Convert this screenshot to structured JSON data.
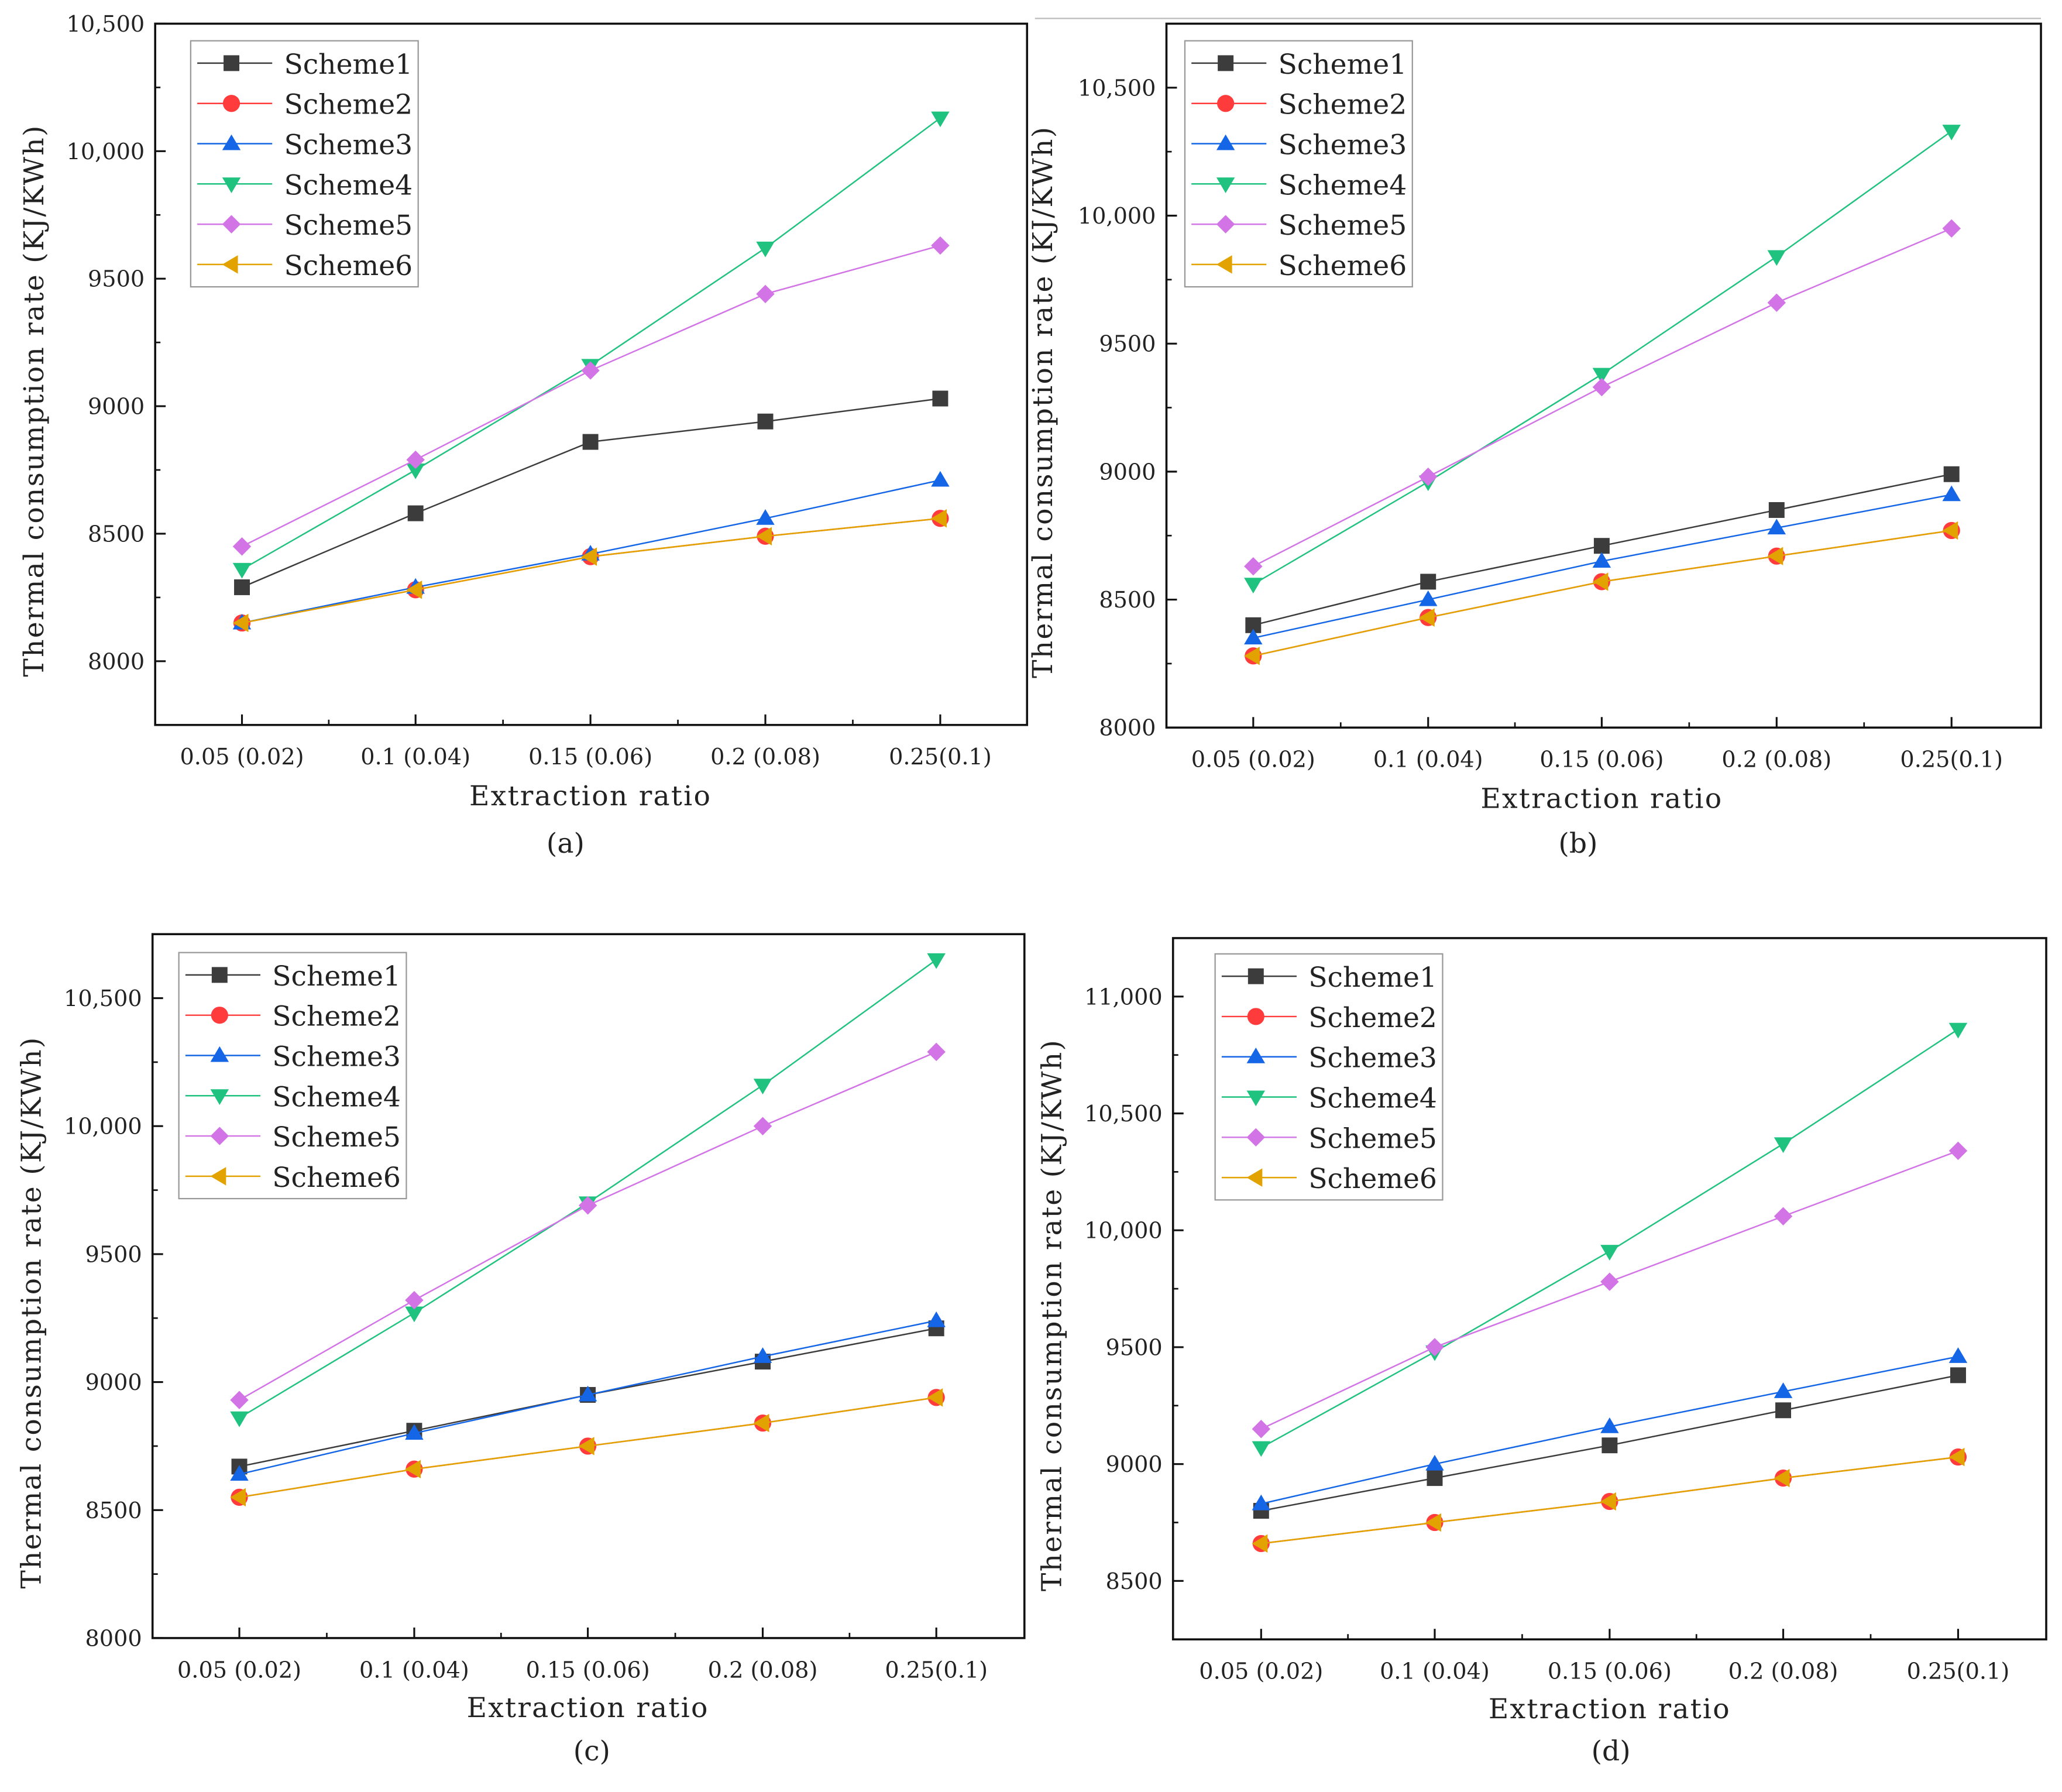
{
  "styles": {
    "Scheme1": {
      "color": "#3c3c3c",
      "marker": "square"
    },
    "Scheme2": {
      "color": "#ff3b3b",
      "marker": "circle"
    },
    "Scheme3": {
      "color": "#1466e6",
      "marker": "triangle-up"
    },
    "Scheme4": {
      "color": "#1fc27e",
      "marker": "triangle-down"
    },
    "Scheme5": {
      "color": "#d274e6",
      "marker": "diamond"
    },
    "Scheme6": {
      "color": "#e2a200",
      "marker": "triangle-left"
    }
  },
  "chart_data": [
    {
      "type": "line",
      "panel_label": "(a)",
      "xlabel": "Extraction ratio",
      "ylabel": "Thermal consumption rate (KJ/KWh)",
      "categories": [
        "0.05 (0.02)",
        "0.1 (0.04)",
        "0.15 (0.06)",
        "0.2 (0.08)",
        "0.25(0.1)"
      ],
      "ylim": [
        7750,
        10500
      ],
      "yticks": [
        8000,
        8500,
        9000,
        9500,
        10000,
        10500
      ],
      "ytick_labels": [
        "8000",
        "8500",
        "9000",
        "9500",
        "10,000",
        "10,500"
      ],
      "legend_position": "top-left",
      "series": [
        {
          "name": "Scheme1",
          "values": [
            8290,
            8580,
            8860,
            8940,
            9030
          ]
        },
        {
          "name": "Scheme2",
          "values": [
            8150,
            8280,
            8410,
            8490,
            8560
          ]
        },
        {
          "name": "Scheme3",
          "values": [
            8150,
            8290,
            8420,
            8560,
            8710
          ]
        },
        {
          "name": "Scheme4",
          "values": [
            8360,
            8750,
            9160,
            9620,
            10130
          ]
        },
        {
          "name": "Scheme5",
          "values": [
            8450,
            8790,
            9140,
            9440,
            9630
          ]
        },
        {
          "name": "Scheme6",
          "values": [
            8150,
            8280,
            8410,
            8490,
            8560
          ]
        }
      ]
    },
    {
      "type": "line",
      "panel_label": "(b)",
      "xlabel": "Extraction ratio",
      "ylabel": "Thermal consumption rate (KJ/KWh)",
      "categories": [
        "0.05 (0.02)",
        "0.1 (0.04)",
        "0.15 (0.06)",
        "0.2 (0.08)",
        "0.25(0.1)"
      ],
      "ylim": [
        8000,
        10750
      ],
      "yticks": [
        8000,
        8500,
        9000,
        9500,
        10000,
        10500
      ],
      "ytick_labels": [
        "8000",
        "8500",
        "9000",
        "9500",
        "10,000",
        "10,500"
      ],
      "legend_position": "top-left",
      "series": [
        {
          "name": "Scheme1",
          "values": [
            8400,
            8570,
            8710,
            8850,
            8990
          ]
        },
        {
          "name": "Scheme2",
          "values": [
            8280,
            8430,
            8570,
            8670,
            8770
          ]
        },
        {
          "name": "Scheme3",
          "values": [
            8350,
            8500,
            8650,
            8780,
            8910
          ]
        },
        {
          "name": "Scheme4",
          "values": [
            8560,
            8960,
            9380,
            9840,
            10330
          ]
        },
        {
          "name": "Scheme5",
          "values": [
            8630,
            8980,
            9330,
            9660,
            9950
          ]
        },
        {
          "name": "Scheme6",
          "values": [
            8280,
            8430,
            8570,
            8670,
            8770
          ]
        }
      ]
    },
    {
      "type": "line",
      "panel_label": "(c)",
      "xlabel": "Extraction ratio",
      "ylabel": "Thermal consumption rate (KJ/KWh)",
      "categories": [
        "0.05 (0.02)",
        "0.1 (0.04)",
        "0.15 (0.06)",
        "0.2 (0.08)",
        "0.25(0.1)"
      ],
      "ylim": [
        8000,
        10750
      ],
      "yticks": [
        8000,
        8500,
        9000,
        9500,
        10000,
        10500
      ],
      "ytick_labels": [
        "8000",
        "8500",
        "9000",
        "9500",
        "10,000",
        "10,500"
      ],
      "legend_position": "top-left",
      "series": [
        {
          "name": "Scheme1",
          "values": [
            8670,
            8810,
            8950,
            9080,
            9210
          ]
        },
        {
          "name": "Scheme2",
          "values": [
            8550,
            8660,
            8750,
            8840,
            8940
          ]
        },
        {
          "name": "Scheme3",
          "values": [
            8640,
            8800,
            8950,
            9100,
            9240
          ]
        },
        {
          "name": "Scheme4",
          "values": [
            8860,
            9270,
            9700,
            10160,
            10650
          ]
        },
        {
          "name": "Scheme5",
          "values": [
            8930,
            9320,
            9690,
            10000,
            10290
          ]
        },
        {
          "name": "Scheme6",
          "values": [
            8550,
            8660,
            8750,
            8840,
            8940
          ]
        }
      ]
    },
    {
      "type": "line",
      "panel_label": "(d)",
      "xlabel": "Extraction ratio",
      "ylabel": "Thermal consumption rate (KJ/KWh)",
      "categories": [
        "0.05 (0.02)",
        "0.1 (0.04)",
        "0.15 (0.06)",
        "0.2 (0.08)",
        "0.25(0.1)"
      ],
      "ylim": [
        8250,
        11250
      ],
      "yticks": [
        8500,
        9000,
        9500,
        10000,
        10500,
        11000
      ],
      "ytick_labels": [
        "8500",
        "9000",
        "9500",
        "10,000",
        "10,500",
        "11,000"
      ],
      "legend_position": "top-left",
      "series": [
        {
          "name": "Scheme1",
          "values": [
            8800,
            8940,
            9080,
            9230,
            9380
          ]
        },
        {
          "name": "Scheme2",
          "values": [
            8660,
            8750,
            8840,
            8940,
            9030
          ]
        },
        {
          "name": "Scheme3",
          "values": [
            8830,
            9000,
            9160,
            9310,
            9460
          ]
        },
        {
          "name": "Scheme4",
          "values": [
            9070,
            9480,
            9910,
            10370,
            10860
          ]
        },
        {
          "name": "Scheme5",
          "values": [
            9150,
            9500,
            9780,
            10060,
            10340
          ]
        },
        {
          "name": "Scheme6",
          "values": [
            8660,
            8750,
            8840,
            8940,
            9030
          ]
        }
      ]
    }
  ]
}
